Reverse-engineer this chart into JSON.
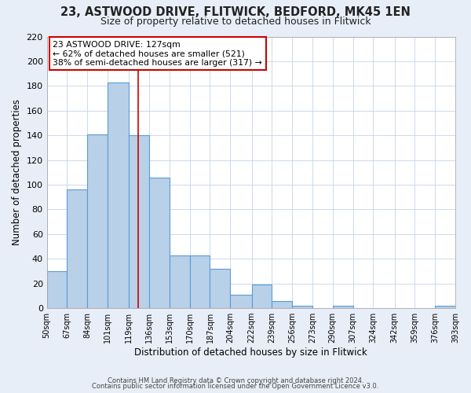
{
  "title": "23, ASTWOOD DRIVE, FLITWICK, BEDFORD, MK45 1EN",
  "subtitle": "Size of property relative to detached houses in Flitwick",
  "xlabel": "Distribution of detached houses by size in Flitwick",
  "ylabel": "Number of detached properties",
  "bar_edges": [
    50,
    67,
    84,
    101,
    119,
    136,
    153,
    170,
    187,
    204,
    222,
    239,
    256,
    273,
    290,
    307,
    324,
    342,
    359,
    376,
    393
  ],
  "bar_heights": [
    30,
    96,
    141,
    183,
    140,
    106,
    43,
    43,
    32,
    11,
    19,
    6,
    2,
    0,
    2,
    0,
    0,
    0,
    0,
    2
  ],
  "bar_color": "#b8d0e8",
  "bar_edge_color": "#5b9bd5",
  "property_line_x": 127,
  "property_line_color": "#cc0000",
  "annotation_title": "23 ASTWOOD DRIVE: 127sqm",
  "annotation_line1": "← 62% of detached houses are smaller (521)",
  "annotation_line2": "38% of semi-detached houses are larger (317) →",
  "annotation_box_color": "#ffffff",
  "annotation_box_edge_color": "#cc0000",
  "ylim": [
    0,
    220
  ],
  "yticks": [
    0,
    20,
    40,
    60,
    80,
    100,
    120,
    140,
    160,
    180,
    200,
    220
  ],
  "tick_labels": [
    "50sqm",
    "67sqm",
    "84sqm",
    "101sqm",
    "119sqm",
    "136sqm",
    "153sqm",
    "170sqm",
    "187sqm",
    "204sqm",
    "222sqm",
    "239sqm",
    "256sqm",
    "273sqm",
    "290sqm",
    "307sqm",
    "324sqm",
    "342sqm",
    "359sqm",
    "376sqm",
    "393sqm"
  ],
  "footer1": "Contains HM Land Registry data © Crown copyright and database right 2024.",
  "footer2": "Contains public sector information licensed under the Open Government Licence v3.0.",
  "background_color": "#e8eef8",
  "plot_background_color": "#ffffff",
  "grid_color": "#c5d5e8",
  "title_fontsize": 10.5,
  "subtitle_fontsize": 9
}
